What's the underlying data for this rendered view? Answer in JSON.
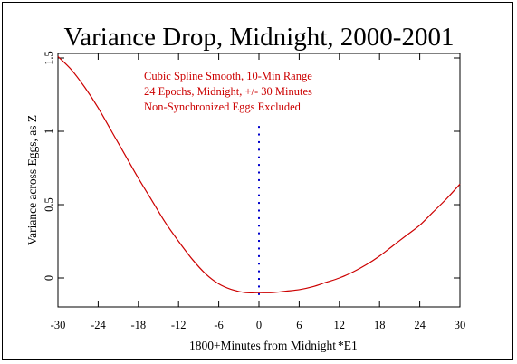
{
  "chart_data": {
    "type": "line",
    "title": "Variance Drop, Midnight, 2000-2001",
    "xlabel": "1800+Minutes from Midnight",
    "xlabel_note": "*E1",
    "ylabel": "Variance across Eggs, as Z",
    "xlim": [
      -30,
      30
    ],
    "ylim": [
      -0.2,
      1.5
    ],
    "x_ticks": [
      "-30",
      "-24",
      "-18",
      "-12",
      "-6",
      "0",
      "6",
      "12",
      "18",
      "24",
      "30"
    ],
    "y_ticks": [
      "0",
      "0.5",
      "1",
      "1.5"
    ],
    "annotations": [
      "Cubic Spline Smooth, 10-Min Range",
      "24 Epochs, Midnight, +/- 30 Minutes",
      "Non-Synchronized Eggs Excluded"
    ],
    "series": [
      {
        "color": "#cc0000",
        "x": [
          -30,
          -28,
          -26,
          -24,
          -22,
          -20,
          -18,
          -16,
          -14,
          -12,
          -10,
          -8,
          -6,
          -4,
          -2,
          0,
          2,
          4,
          6,
          8,
          10,
          12,
          14,
          16,
          18,
          20,
          22,
          24,
          26,
          28,
          30
        ],
        "y": [
          1.51,
          1.42,
          1.3,
          1.16,
          1.0,
          0.84,
          0.68,
          0.53,
          0.38,
          0.25,
          0.13,
          0.03,
          -0.04,
          -0.08,
          -0.1,
          -0.1,
          -0.1,
          -0.09,
          -0.08,
          -0.06,
          -0.03,
          0.0,
          0.04,
          0.09,
          0.15,
          0.22,
          0.29,
          0.36,
          0.45,
          0.54,
          0.64
        ]
      }
    ],
    "marker_line": {
      "x": 0,
      "y_from": -0.11,
      "y_to": 1.03,
      "color": "#0000cc",
      "style": "dotted"
    }
  }
}
